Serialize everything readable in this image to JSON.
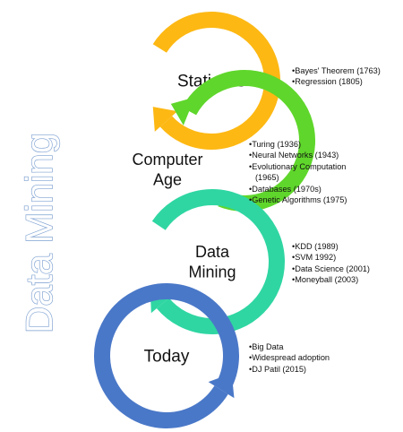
{
  "side_title": "Data Mining",
  "stages": [
    {
      "label_lines": [
        "Statistics"
      ],
      "color": "#FDB813",
      "bullets": [
        "Bayes' Theorem (1763)",
        "Regression (1805)"
      ]
    },
    {
      "label_lines": [
        "Computer",
        "Age"
      ],
      "color": "#5FD62B",
      "bullets": [
        "Turing (1936)",
        "Neural Networks (1943)",
        "Evolutionary Computation",
        "(1965)",
        "Databases (1970s)",
        "Genetic Algorithms (1975)"
      ]
    },
    {
      "label_lines": [
        "Data",
        "Mining"
      ],
      "color": "#2FD6A2",
      "bullets": [
        "KDD (1989)",
        "SVM 1992)",
        "Data Science (2001)",
        "Moneyball (2003)"
      ]
    },
    {
      "label_lines": [
        "Today"
      ],
      "color": "#4A78C8",
      "bullets": [
        "Big Data",
        "Widespread adoption",
        "DJ Patil (2015)"
      ]
    }
  ]
}
